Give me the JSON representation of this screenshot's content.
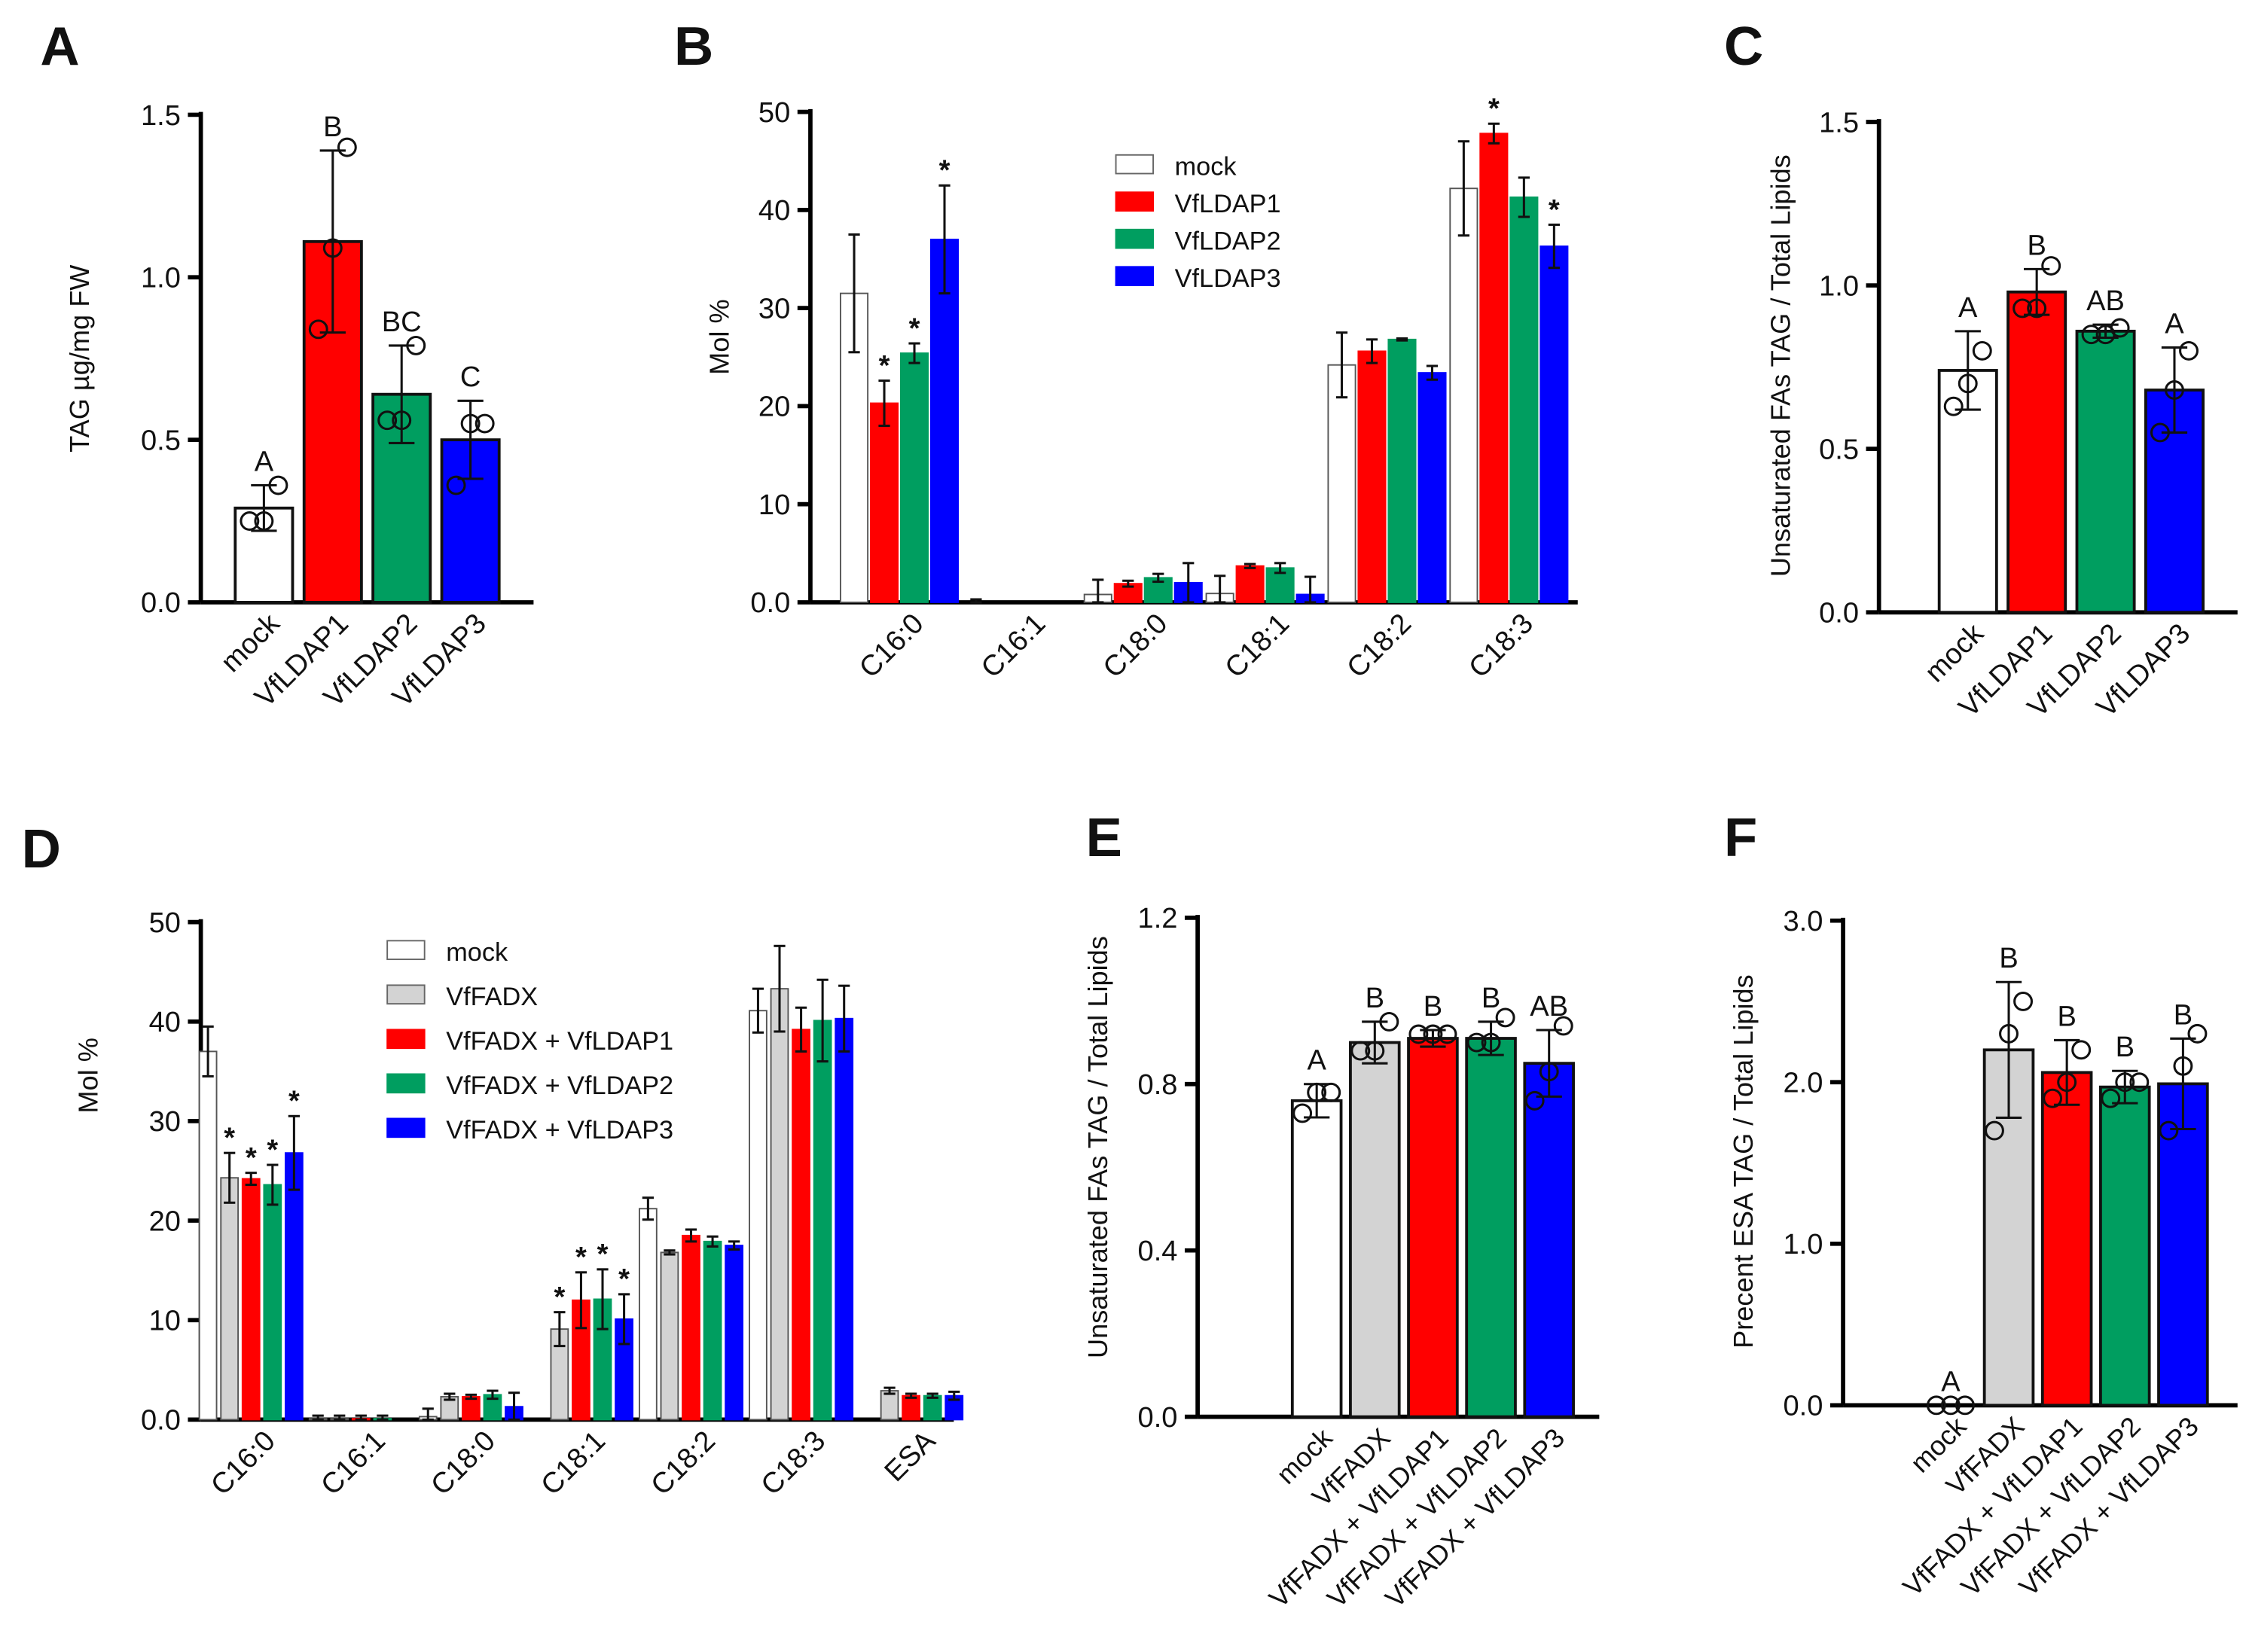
{
  "chart_data": [
    {
      "panel": "A",
      "type": "bar",
      "grouped": false,
      "ylabel": "TAG µg/mg FW",
      "ylim": [
        0,
        1.5
      ],
      "yticks": [
        0,
        0.5,
        1.0,
        1.5
      ],
      "tick_labels": [
        "0.0",
        "0.5",
        "1.0",
        "1.5"
      ],
      "categories": [
        "mock",
        "VfLDAP1",
        "VfLDAP2",
        "VfLDAP3"
      ],
      "colors": [
        "#ffffff",
        "#ff0000",
        "#009e60",
        "#0000ff"
      ],
      "values": [
        0.29,
        1.11,
        0.64,
        0.5
      ],
      "errors": [
        0.07,
        0.28,
        0.15,
        0.12
      ],
      "letters": [
        "A",
        "B",
        "BC",
        "C"
      ],
      "points": [
        [
          0.25,
          0.25,
          0.36
        ],
        [
          0.84,
          1.09,
          1.4
        ],
        [
          0.56,
          0.56,
          0.79
        ],
        [
          0.36,
          0.55,
          0.55
        ]
      ]
    },
    {
      "panel": "B",
      "type": "bar",
      "grouped": true,
      "ylabel": "Mol %",
      "ylim": [
        0,
        50
      ],
      "yticks": [
        0,
        10,
        20,
        30,
        40,
        50
      ],
      "tick_labels": [
        "0.0",
        "10",
        "20",
        "30",
        "40",
        "50"
      ],
      "categories": [
        "C16:0",
        "C16:1",
        "C18:0",
        "C18:1",
        "C18:2",
        "C18:3"
      ],
      "series": [
        {
          "name": "mock",
          "color": "#ffffff",
          "values": [
            31.5,
            0,
            0.8,
            0.9,
            24.2,
            42.2
          ],
          "errors": [
            6.0,
            0.3,
            1.5,
            1.8,
            3.3,
            4.8
          ],
          "stars": [
            false,
            false,
            false,
            false,
            false,
            false
          ]
        },
        {
          "name": "VfLDAP1",
          "color": "#ff0000",
          "values": [
            20.3,
            0,
            1.9,
            3.7,
            25.6,
            47.8
          ],
          "errors": [
            2.3,
            0,
            0.3,
            0.2,
            1.2,
            1.0
          ],
          "stars": [
            true,
            false,
            false,
            false,
            false,
            true
          ]
        },
        {
          "name": "VfLDAP2",
          "color": "#009e60",
          "values": [
            25.4,
            0,
            2.5,
            3.5,
            26.8,
            41.3
          ],
          "errors": [
            1.0,
            0,
            0.4,
            0.5,
            0.1,
            2.0
          ],
          "stars": [
            true,
            false,
            false,
            false,
            false,
            false
          ]
        },
        {
          "name": "VfLDAP3",
          "color": "#0000ff",
          "values": [
            37.0,
            0,
            2.0,
            0.8,
            23.4,
            36.3
          ],
          "errors": [
            5.5,
            0,
            2.0,
            1.8,
            0.7,
            2.2
          ],
          "stars": [
            true,
            false,
            false,
            false,
            false,
            true
          ]
        }
      ],
      "star_label": "*",
      "legend_position": "top-center"
    },
    {
      "panel": "C",
      "type": "bar",
      "grouped": false,
      "ylabel": "Unsaturated FAs TAG / Total Lipids",
      "ylim": [
        0,
        1.5
      ],
      "yticks": [
        0,
        0.5,
        1.0,
        1.5
      ],
      "tick_labels": [
        "0.0",
        "0.5",
        "1.0",
        "1.5"
      ],
      "categories": [
        "mock",
        "VfLDAP1",
        "VfLDAP2",
        "VfLDAP3"
      ],
      "colors": [
        "#ffffff",
        "#ff0000",
        "#009e60",
        "#0000ff"
      ],
      "values": [
        0.74,
        0.98,
        0.86,
        0.68
      ],
      "errors": [
        0.12,
        0.07,
        0.02,
        0.13
      ],
      "letters": [
        "A",
        "B",
        "AB",
        "A"
      ],
      "points": [
        [
          0.63,
          0.7,
          0.8
        ],
        [
          0.93,
          0.93,
          1.06
        ],
        [
          0.85,
          0.85,
          0.87
        ],
        [
          0.55,
          0.68,
          0.8
        ]
      ]
    },
    {
      "panel": "D",
      "type": "bar",
      "grouped": true,
      "ylabel": "Mol %",
      "ylim": [
        0,
        50
      ],
      "yticks": [
        0,
        10,
        20,
        30,
        40,
        50
      ],
      "tick_labels": [
        "0.0",
        "10",
        "20",
        "30",
        "40",
        "50"
      ],
      "categories": [
        "C16:0",
        "C16:1",
        "C18:0",
        "C18:1",
        "C18:2",
        "C18:3",
        "ESA"
      ],
      "series": [
        {
          "name": "mock",
          "color": "#ffffff",
          "values": [
            37.0,
            0.1,
            0.3,
            0,
            21.2,
            41.1,
            0
          ],
          "errors": [
            2.5,
            0.3,
            0.8,
            0,
            1.1,
            2.2,
            0
          ],
          "stars": [
            false,
            false,
            false,
            false,
            false,
            false,
            false
          ]
        },
        {
          "name": "VfFADX",
          "color": "#d3d3d3",
          "values": [
            24.3,
            0.1,
            2.3,
            9.1,
            16.8,
            43.3,
            2.9
          ],
          "errors": [
            2.5,
            0.3,
            0.3,
            1.7,
            0.2,
            4.3,
            0.3
          ],
          "stars": [
            true,
            false,
            false,
            true,
            false,
            false,
            false
          ]
        },
        {
          "name": "VfFADX + VfLDAP1",
          "color": "#ff0000",
          "values": [
            24.2,
            0.1,
            2.3,
            12.0,
            18.5,
            39.2,
            2.4
          ],
          "errors": [
            0.6,
            0.3,
            0.2,
            2.8,
            0.6,
            2.2,
            0.2
          ],
          "stars": [
            true,
            false,
            false,
            true,
            false,
            false,
            false
          ]
        },
        {
          "name": "VfFADX + VfLDAP2",
          "color": "#009e60",
          "values": [
            23.6,
            0.1,
            2.5,
            12.1,
            17.9,
            40.1,
            2.4
          ],
          "errors": [
            2.0,
            0.3,
            0.4,
            3.0,
            0.5,
            4.1,
            0.2
          ],
          "stars": [
            true,
            false,
            false,
            true,
            false,
            false,
            false
          ]
        },
        {
          "name": "VfFADX + VfLDAP3",
          "color": "#0000ff",
          "values": [
            26.8,
            0,
            1.3,
            10.1,
            17.5,
            40.3,
            2.4
          ],
          "errors": [
            3.7,
            0,
            1.4,
            2.5,
            0.4,
            3.3,
            0.4
          ],
          "stars": [
            true,
            false,
            false,
            true,
            false,
            false,
            false
          ]
        }
      ],
      "star_label": "*",
      "legend_position": "top-center"
    },
    {
      "panel": "E",
      "type": "bar",
      "grouped": false,
      "ylabel": "Unsaturated FAs TAG / Total Lipids",
      "ylim": [
        0,
        1.2
      ],
      "yticks": [
        0,
        0.4,
        0.8,
        1.2
      ],
      "tick_labels": [
        "0.0",
        "0.4",
        "0.8",
        "1.2"
      ],
      "categories": [
        "mock",
        "VfFADX",
        "VfFADX + VfLDAP1",
        "VfFADX + VfLDAP2",
        "VfFADX + VfLDAP3"
      ],
      "colors": [
        "#ffffff",
        "#d3d3d3",
        "#ff0000",
        "#009e60",
        "#0000ff"
      ],
      "values": [
        0.76,
        0.9,
        0.91,
        0.91,
        0.85
      ],
      "errors": [
        0.04,
        0.05,
        0.02,
        0.04,
        0.08
      ],
      "letters": [
        "A",
        "B",
        "B",
        "B",
        "AB"
      ],
      "points": [
        [
          0.73,
          0.78,
          0.78
        ],
        [
          0.88,
          0.88,
          0.95
        ],
        [
          0.92,
          0.92,
          0.92
        ],
        [
          0.9,
          0.9,
          0.96
        ],
        [
          0.76,
          0.83,
          0.94
        ]
      ]
    },
    {
      "panel": "F",
      "type": "bar",
      "grouped": false,
      "ylabel": "Precent ESA TAG / Total Lipids",
      "ylim": [
        0,
        3.0
      ],
      "yticks": [
        0,
        1.0,
        2.0,
        3.0
      ],
      "tick_labels": [
        "0.0",
        "1.0",
        "2.0",
        "3.0"
      ],
      "categories": [
        "mock",
        "VfFADX",
        "VfFADX + VfLDAP1",
        "VfFADX + VfLDAP2",
        "VfFADX + VfLDAP3"
      ],
      "colors": [
        "#ffffff",
        "#d3d3d3",
        "#ff0000",
        "#009e60",
        "#0000ff"
      ],
      "values": [
        0.0,
        2.2,
        2.06,
        1.97,
        1.99
      ],
      "errors": [
        0,
        0.42,
        0.2,
        0.1,
        0.28
      ],
      "letters": [
        "A",
        "B",
        "B",
        "B",
        "B"
      ],
      "points": [
        [
          0,
          0,
          0
        ],
        [
          1.7,
          2.3,
          2.5
        ],
        [
          1.9,
          2.0,
          2.2
        ],
        [
          1.9,
          2.0,
          2.0
        ],
        [
          1.7,
          2.1,
          2.3
        ]
      ]
    }
  ]
}
